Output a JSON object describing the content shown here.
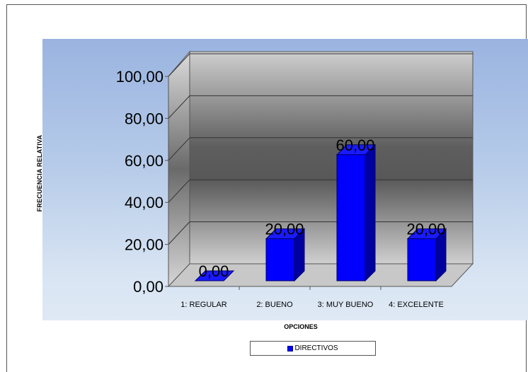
{
  "chart_data": {
    "type": "bar",
    "categories": [
      "1: REGULAR",
      "2: BUENO",
      "3: MUY BUENO",
      "4: EXCELENTE"
    ],
    "series": [
      {
        "name": "DIRECTIVOS",
        "values": [
          0,
          20,
          60,
          20
        ],
        "color": "#0000ff"
      }
    ],
    "data_labels": [
      "0,00",
      "20,00",
      "60,00",
      "20,00"
    ],
    "y_ticks": [
      "0,00",
      "20,00",
      "40,00",
      "60,00",
      "80,00",
      "100,00"
    ],
    "ylim": [
      0,
      100
    ],
    "xlabel": "OPCIONES",
    "ylabel": "FRECUENCIA RELATIVA",
    "legend": "bottom",
    "grid": true,
    "three_d": true
  }
}
